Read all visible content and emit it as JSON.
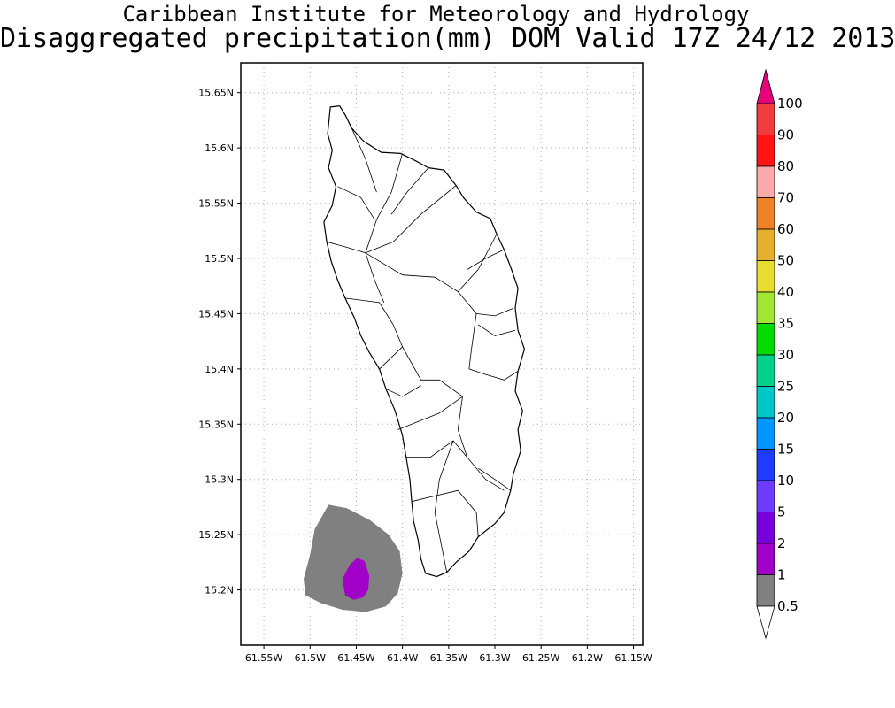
{
  "title": "Caribbean Institute for Meteorology and Hydrology",
  "subtitle": "Disaggregated precipitation(mm) DOM Valid 17Z 24/12 2013",
  "map": {
    "lon_range": [
      -61.575,
      -61.14
    ],
    "lat_range": [
      15.15,
      15.677
    ],
    "x_ticks": [
      {
        "v": -61.55,
        "label": "61.55W"
      },
      {
        "v": -61.5,
        "label": "61.5W"
      },
      {
        "v": -61.45,
        "label": "61.45W"
      },
      {
        "v": -61.4,
        "label": "61.4W"
      },
      {
        "v": -61.35,
        "label": "61.35W"
      },
      {
        "v": -61.3,
        "label": "61.3W"
      },
      {
        "v": -61.25,
        "label": "61.25W"
      },
      {
        "v": -61.2,
        "label": "61.2W"
      },
      {
        "v": -61.15,
        "label": "61.15W"
      }
    ],
    "y_ticks": [
      {
        "v": 15.65,
        "label": "15.65N"
      },
      {
        "v": 15.6,
        "label": "15.6N"
      },
      {
        "v": 15.55,
        "label": "15.55N"
      },
      {
        "v": 15.5,
        "label": "15.5N"
      },
      {
        "v": 15.45,
        "label": "15.45N"
      },
      {
        "v": 15.4,
        "label": "15.4N"
      },
      {
        "v": 15.35,
        "label": "15.35N"
      },
      {
        "v": 15.3,
        "label": "15.3N"
      },
      {
        "v": 15.25,
        "label": "15.25N"
      },
      {
        "v": 15.2,
        "label": "15.2N"
      }
    ],
    "grid": true,
    "island_outline": [
      [
        -61.478,
        15.637
      ],
      [
        -61.468,
        15.638
      ],
      [
        -61.462,
        15.63
      ],
      [
        -61.455,
        15.618
      ],
      [
        -61.442,
        15.606
      ],
      [
        -61.423,
        15.596
      ],
      [
        -61.402,
        15.595
      ],
      [
        -61.385,
        15.588
      ],
      [
        -61.372,
        15.582
      ],
      [
        -61.355,
        15.58
      ],
      [
        -61.342,
        15.566
      ],
      [
        -61.334,
        15.555
      ],
      [
        -61.32,
        15.542
      ],
      [
        -61.305,
        15.536
      ],
      [
        -61.298,
        15.522
      ],
      [
        -61.29,
        15.508
      ],
      [
        -61.282,
        15.49
      ],
      [
        -61.275,
        15.473
      ],
      [
        -61.278,
        15.455
      ],
      [
        -61.275,
        15.435
      ],
      [
        -61.268,
        15.418
      ],
      [
        -61.275,
        15.398
      ],
      [
        -61.278,
        15.38
      ],
      [
        -61.27,
        15.362
      ],
      [
        -61.275,
        15.345
      ],
      [
        -61.272,
        15.326
      ],
      [
        -61.28,
        15.305
      ],
      [
        -61.283,
        15.29
      ],
      [
        -61.29,
        15.27
      ],
      [
        -61.3,
        15.26
      ],
      [
        -61.318,
        15.248
      ],
      [
        -61.328,
        15.235
      ],
      [
        -61.342,
        15.225
      ],
      [
        -61.352,
        15.216
      ],
      [
        -61.363,
        15.212
      ],
      [
        -61.375,
        15.215
      ],
      [
        -61.38,
        15.228
      ],
      [
        -61.383,
        15.245
      ],
      [
        -61.388,
        15.262
      ],
      [
        -61.39,
        15.28
      ],
      [
        -61.392,
        15.3
      ],
      [
        -61.396,
        15.32
      ],
      [
        -61.4,
        15.34
      ],
      [
        -61.408,
        15.362
      ],
      [
        -61.418,
        15.382
      ],
      [
        -61.425,
        15.4
      ],
      [
        -61.436,
        15.415
      ],
      [
        -61.445,
        15.43
      ],
      [
        -61.452,
        15.446
      ],
      [
        -61.462,
        15.464
      ],
      [
        -61.47,
        15.48
      ],
      [
        -61.477,
        15.497
      ],
      [
        -61.482,
        15.515
      ],
      [
        -61.485,
        15.533
      ],
      [
        -61.476,
        15.548
      ],
      [
        -61.472,
        15.565
      ],
      [
        -61.48,
        15.582
      ],
      [
        -61.476,
        15.598
      ],
      [
        -61.481,
        15.613
      ],
      [
        -61.478,
        15.637
      ]
    ],
    "river_lines": [
      [
        [
          -61.4,
          15.595
        ],
        [
          -61.412,
          15.56
        ],
        [
          -61.428,
          15.535
        ],
        [
          -61.44,
          15.505
        ]
      ],
      [
        [
          -61.342,
          15.566
        ],
        [
          -61.38,
          15.54
        ],
        [
          -61.41,
          15.515
        ],
        [
          -61.44,
          15.505
        ]
      ],
      [
        [
          -61.482,
          15.515
        ],
        [
          -61.46,
          15.51
        ],
        [
          -61.44,
          15.505
        ]
      ],
      [
        [
          -61.44,
          15.505
        ],
        [
          -61.43,
          15.48
        ],
        [
          -61.42,
          15.46
        ]
      ],
      [
        [
          -61.44,
          15.505
        ],
        [
          -61.4,
          15.485
        ],
        [
          -61.365,
          15.483
        ],
        [
          -61.34,
          15.47
        ]
      ],
      [
        [
          -61.298,
          15.522
        ],
        [
          -61.318,
          15.49
        ],
        [
          -61.34,
          15.47
        ]
      ],
      [
        [
          -61.34,
          15.47
        ],
        [
          -61.32,
          15.45
        ],
        [
          -61.3,
          15.448
        ],
        [
          -61.28,
          15.455
        ]
      ],
      [
        [
          -61.462,
          15.464
        ],
        [
          -61.425,
          15.46
        ],
        [
          -61.41,
          15.44
        ],
        [
          -61.4,
          15.42
        ]
      ],
      [
        [
          -61.32,
          15.45
        ],
        [
          -61.325,
          15.42
        ],
        [
          -61.328,
          15.4
        ]
      ],
      [
        [
          -61.425,
          15.4
        ],
        [
          -61.4,
          15.42
        ],
        [
          -61.38,
          15.39
        ],
        [
          -61.36,
          15.39
        ],
        [
          -61.335,
          15.375
        ]
      ],
      [
        [
          -61.328,
          15.4
        ],
        [
          -61.31,
          15.395
        ],
        [
          -61.29,
          15.39
        ],
        [
          -61.275,
          15.398
        ]
      ],
      [
        [
          -61.335,
          15.375
        ],
        [
          -61.36,
          15.36
        ],
        [
          -61.39,
          15.35
        ],
        [
          -61.405,
          15.345
        ]
      ],
      [
        [
          -61.335,
          15.375
        ],
        [
          -61.34,
          15.345
        ],
        [
          -61.33,
          15.32
        ],
        [
          -61.31,
          15.3
        ],
        [
          -61.29,
          15.29
        ]
      ],
      [
        [
          -61.396,
          15.32
        ],
        [
          -61.37,
          15.32
        ],
        [
          -61.345,
          15.335
        ],
        [
          -61.33,
          15.32
        ]
      ],
      [
        [
          -61.39,
          15.28
        ],
        [
          -61.365,
          15.285
        ],
        [
          -61.34,
          15.29
        ],
        [
          -61.32,
          15.27
        ],
        [
          -61.318,
          15.248
        ]
      ],
      [
        [
          -61.345,
          15.335
        ],
        [
          -61.36,
          15.3
        ],
        [
          -61.365,
          15.27
        ],
        [
          -61.352,
          15.216
        ]
      ],
      [
        [
          -61.47,
          15.565
        ],
        [
          -61.445,
          15.555
        ],
        [
          -61.43,
          15.535
        ]
      ],
      [
        [
          -61.455,
          15.618
        ],
        [
          -61.44,
          15.59
        ],
        [
          -61.428,
          15.56
        ]
      ],
      [
        [
          -61.372,
          15.582
        ],
        [
          -61.395,
          15.56
        ],
        [
          -61.412,
          15.54
        ]
      ],
      [
        [
          -61.29,
          15.508
        ],
        [
          -61.31,
          15.5
        ],
        [
          -61.33,
          15.49
        ]
      ],
      [
        [
          -61.278,
          15.435
        ],
        [
          -61.3,
          15.43
        ],
        [
          -61.318,
          15.44
        ]
      ],
      [
        [
          -61.418,
          15.382
        ],
        [
          -61.4,
          15.375
        ],
        [
          -61.38,
          15.385
        ]
      ],
      [
        [
          -61.283,
          15.29
        ],
        [
          -61.3,
          15.3
        ],
        [
          -61.318,
          15.31
        ]
      ]
    ],
    "rain_areas": [
      {
        "level": "0.5-1",
        "color": "#808080",
        "points": [
          [
            -61.48,
            15.277
          ],
          [
            -61.46,
            15.274
          ],
          [
            -61.435,
            15.263
          ],
          [
            -61.415,
            15.25
          ],
          [
            -61.403,
            15.235
          ],
          [
            -61.4,
            15.215
          ],
          [
            -61.405,
            15.197
          ],
          [
            -61.418,
            15.185
          ],
          [
            -61.44,
            15.18
          ],
          [
            -61.465,
            15.182
          ],
          [
            -61.488,
            15.188
          ],
          [
            -61.505,
            15.195
          ],
          [
            -61.507,
            15.21
          ],
          [
            -61.5,
            15.232
          ],
          [
            -61.495,
            15.255
          ],
          [
            -61.48,
            15.277
          ]
        ]
      },
      {
        "level": "1-2",
        "color": "#a000c8",
        "points": [
          [
            -61.449,
            15.229
          ],
          [
            -61.441,
            15.226
          ],
          [
            -61.436,
            15.213
          ],
          [
            -61.437,
            15.2
          ],
          [
            -61.443,
            15.193
          ],
          [
            -61.453,
            15.191
          ],
          [
            -61.462,
            15.195
          ],
          [
            -61.465,
            15.21
          ],
          [
            -61.457,
            15.223
          ],
          [
            -61.449,
            15.229
          ]
        ]
      }
    ]
  },
  "colorbar": {
    "levels": [
      "0.5",
      "1",
      "2",
      "5",
      "10",
      "15",
      "20",
      "25",
      "30",
      "35",
      "40",
      "50",
      "60",
      "70",
      "80",
      "90",
      "100"
    ],
    "colors": [
      "#ffffff",
      "#808080",
      "#a000c8",
      "#7800dc",
      "#6e3cff",
      "#1e3cff",
      "#0096ff",
      "#00c8c8",
      "#00d28c",
      "#00dc00",
      "#a0e632",
      "#e6dc32",
      "#e6af2d",
      "#f08228",
      "#faaaaa",
      "#ff1414",
      "#f03c3c",
      "#e6007a"
    ]
  }
}
